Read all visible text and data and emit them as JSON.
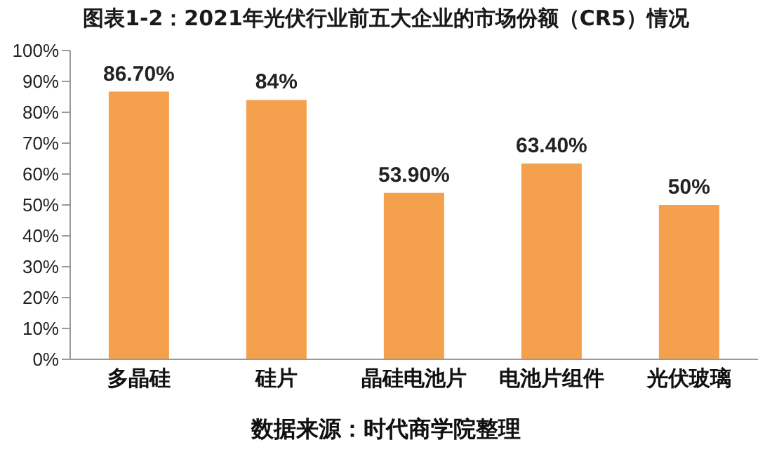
{
  "chart_data": {
    "type": "bar",
    "title": "图表1-2：2021年光伏行业前五大企业的市场份额（CR5）情况",
    "categories": [
      "多晶硅",
      "硅片",
      "晶硅电池片",
      "电池片组件",
      "光伏玻璃"
    ],
    "values": [
      86.7,
      84,
      53.9,
      63.4,
      50
    ],
    "value_labels": [
      "86.70%",
      "84%",
      "53.90%",
      "63.40%",
      "50%"
    ],
    "color": "#f5a04c",
    "ylim": [
      0,
      100
    ],
    "yticks": [
      {
        "value": 0,
        "label": "0%"
      },
      {
        "value": 10,
        "label": "10%"
      },
      {
        "value": 20,
        "label": "20%"
      },
      {
        "value": 30,
        "label": "30%"
      },
      {
        "value": 40,
        "label": "40%"
      },
      {
        "value": 50,
        "label": "50%"
      },
      {
        "value": 60,
        "label": "60%"
      },
      {
        "value": 70,
        "label": "70%"
      },
      {
        "value": 80,
        "label": "80%"
      },
      {
        "value": 90,
        "label": "90%"
      },
      {
        "value": 100,
        "label": "100%"
      }
    ],
    "grid": false,
    "legend": false,
    "annotations": [
      "数据来源：时代商学院整理"
    ]
  }
}
